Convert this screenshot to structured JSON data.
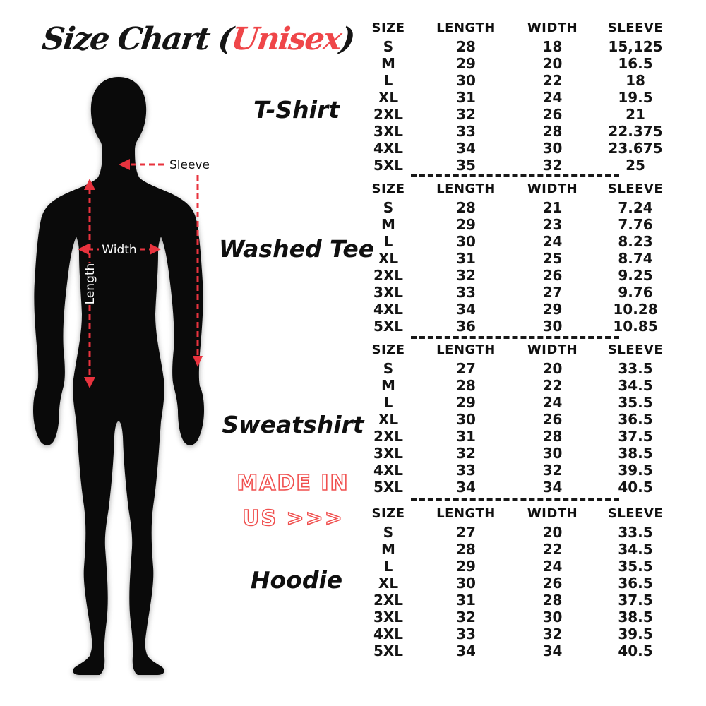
{
  "title": {
    "prefix": "Size Chart (",
    "accent": "Unisex",
    "suffix": ")"
  },
  "colors": {
    "accent_red": "#ef4649",
    "arrow_red": "#e8333e",
    "outline_red": "#f0504f",
    "silhouette_black": "#0a0a0a",
    "text_black": "#141414",
    "background": "#ffffff"
  },
  "figure": {
    "sleeve_label": "Sleeve",
    "width_label": "Width",
    "length_label": "Length"
  },
  "made_in": {
    "line1": "MADE IN",
    "line2": "US >>>"
  },
  "chart_data": {
    "type": "table",
    "tables": [
      {
        "product": "T-Shirt",
        "headers": [
          "SIZE",
          "LENGTH",
          "WIDTH",
          "SLEEVE"
        ],
        "rows": [
          [
            "S",
            "28",
            "18",
            "15,125"
          ],
          [
            "M",
            "29",
            "20",
            "16.5"
          ],
          [
            "L",
            "30",
            "22",
            "18"
          ],
          [
            "XL",
            "31",
            "24",
            "19.5"
          ],
          [
            "2XL",
            "32",
            "26",
            "21"
          ],
          [
            "3XL",
            "33",
            "28",
            "22.375"
          ],
          [
            "4XL",
            "34",
            "30",
            "23.675"
          ],
          [
            "5XL",
            "35",
            "32",
            "25"
          ]
        ]
      },
      {
        "product": "Washed Tee",
        "headers": [
          "SIZE",
          "LENGTH",
          "WIDTH",
          "SLEEVE"
        ],
        "rows": [
          [
            "S",
            "28",
            "21",
            "7.24"
          ],
          [
            "M",
            "29",
            "23",
            "7.76"
          ],
          [
            "L",
            "30",
            "24",
            "8.23"
          ],
          [
            "XL",
            "31",
            "25",
            "8.74"
          ],
          [
            "2XL",
            "32",
            "26",
            "9.25"
          ],
          [
            "3XL",
            "33",
            "27",
            "9.76"
          ],
          [
            "4XL",
            "34",
            "29",
            "10.28"
          ],
          [
            "5XL",
            "36",
            "30",
            "10.85"
          ]
        ]
      },
      {
        "product": "Sweatshirt",
        "headers": [
          "SIZE",
          "LENGTH",
          "WIDTH",
          "SLEEVE"
        ],
        "rows": [
          [
            "S",
            "27",
            "20",
            "33.5"
          ],
          [
            "M",
            "28",
            "22",
            "34.5"
          ],
          [
            "L",
            "29",
            "24",
            "35.5"
          ],
          [
            "XL",
            "30",
            "26",
            "36.5"
          ],
          [
            "2XL",
            "31",
            "28",
            "37.5"
          ],
          [
            "3XL",
            "32",
            "30",
            "38.5"
          ],
          [
            "4XL",
            "33",
            "32",
            "39.5"
          ],
          [
            "5XL",
            "34",
            "34",
            "40.5"
          ]
        ]
      },
      {
        "product": "Hoodie",
        "headers": [
          "SIZE",
          "LENGTH",
          "WIDTH",
          "SLEEVE"
        ],
        "rows": [
          [
            "S",
            "27",
            "20",
            "33.5"
          ],
          [
            "M",
            "28",
            "22",
            "34.5"
          ],
          [
            "L",
            "29",
            "24",
            "35.5"
          ],
          [
            "XL",
            "30",
            "26",
            "36.5"
          ],
          [
            "2XL",
            "31",
            "28",
            "37.5"
          ],
          [
            "3XL",
            "32",
            "30",
            "38.5"
          ],
          [
            "4XL",
            "33",
            "32",
            "39.5"
          ],
          [
            "5XL",
            "34",
            "34",
            "40.5"
          ]
        ]
      }
    ]
  }
}
